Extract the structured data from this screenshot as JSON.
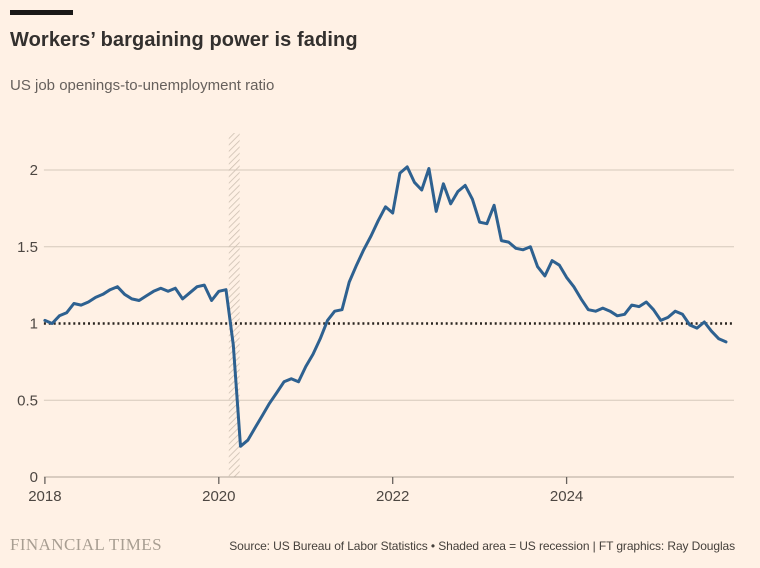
{
  "header": {
    "title": "Workers’ bargaining power is fading",
    "subtitle": "US job openings-to-unemployment ratio"
  },
  "footer": {
    "brand": "FINANCIAL TIMES",
    "source": "Source: US Bureau of Labor Statistics • Shaded area = US recession | FT graphics: Ray Douglas"
  },
  "chart_data": {
    "type": "line",
    "title": "Workers’ bargaining power is fading",
    "subtitle": "US job openings-to-unemployment ratio",
    "series": [
      {
        "name": "US job openings-to-unemployment ratio",
        "start": "2018-01",
        "interval": "monthly",
        "values": [
          1.02,
          1.0,
          1.05,
          1.07,
          1.13,
          1.12,
          1.14,
          1.17,
          1.19,
          1.22,
          1.24,
          1.19,
          1.16,
          1.15,
          1.18,
          1.21,
          1.23,
          1.21,
          1.23,
          1.16,
          1.2,
          1.24,
          1.25,
          1.15,
          1.21,
          1.22,
          0.86,
          0.2,
          0.24,
          0.32,
          0.4,
          0.48,
          0.55,
          0.62,
          0.64,
          0.62,
          0.72,
          0.8,
          0.9,
          1.02,
          1.08,
          1.09,
          1.27,
          1.38,
          1.48,
          1.57,
          1.67,
          1.76,
          1.72,
          1.98,
          2.02,
          1.92,
          1.87,
          2.01,
          1.73,
          1.91,
          1.78,
          1.86,
          1.9,
          1.81,
          1.66,
          1.65,
          1.77,
          1.54,
          1.53,
          1.49,
          1.48,
          1.5,
          1.37,
          1.31,
          1.41,
          1.38,
          1.3,
          1.24,
          1.16,
          1.09,
          1.08,
          1.1,
          1.08,
          1.05,
          1.06,
          1.12,
          1.11,
          1.14,
          1.09,
          1.02,
          1.04,
          1.08,
          1.06,
          0.99,
          0.97,
          1.01,
          0.95,
          0.9,
          0.88
        ]
      }
    ],
    "x_ticks": [
      "2018",
      "2020",
      "2022",
      "2024"
    ],
    "x_tick_years": [
      2018,
      2020,
      2022,
      2024
    ],
    "y_ticks": [
      "0",
      "0.5",
      "1",
      "1.5",
      "2"
    ],
    "y_tick_values": [
      0,
      0.5,
      1,
      1.5,
      2
    ],
    "ylim": [
      0,
      2.23
    ],
    "xlim_years": [
      2018,
      2025.95
    ],
    "reference_line_y": 1,
    "recession_band_years": [
      2020.115,
      2020.24
    ],
    "recession_band_label": "US recession",
    "grid": true,
    "legend": "none",
    "colors": {
      "line": "#2E6190",
      "grid": "#D5C9BC",
      "axis": "#B3A89B",
      "tick": "#66605C",
      "reference": "#29241F",
      "hatch": "#CDC0B2",
      "background": "#FFF1E5",
      "tick_text": "#4D4742"
    }
  }
}
